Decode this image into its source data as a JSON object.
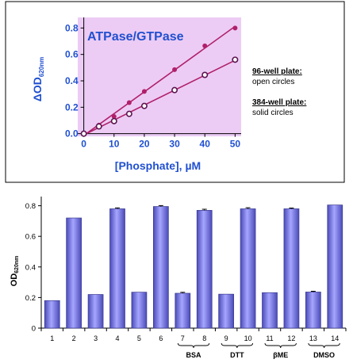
{
  "chart_data": [
    {
      "type": "line",
      "title": "ATPase/GTPase",
      "xlabel": "[Phosphate], µM",
      "ylabel_main": "ΔOD",
      "ylabel_sub": "620nm",
      "xlim": [
        -2,
        52
      ],
      "ylim": [
        -0.02,
        0.88
      ],
      "xticks": [
        0,
        10,
        20,
        30,
        40,
        50
      ],
      "xtick_labels": [
        "0",
        "10",
        "20",
        "30",
        "40",
        "50"
      ],
      "yticks": [
        0.0,
        0.2,
        0.4,
        0.6,
        0.8
      ],
      "ytick_labels": [
        "0.0",
        "0.2",
        "0.4",
        "0.6",
        "0.8"
      ],
      "plot_bg": "#ECCCF5",
      "line_color": "#B0206A",
      "open_color": "#5A1450",
      "grid": false,
      "series": [
        {
          "marker": "solid",
          "x": [
            0,
            5,
            10,
            15,
            20,
            30,
            40,
            50
          ],
          "values": [
            0.0,
            0.065,
            0.13,
            0.235,
            0.32,
            0.485,
            0.665,
            0.8
          ]
        },
        {
          "marker": "open",
          "x": [
            0,
            5,
            10,
            15,
            20,
            30,
            40,
            50
          ],
          "values": [
            0.0,
            0.055,
            0.095,
            0.15,
            0.21,
            0.33,
            0.445,
            0.56
          ]
        }
      ],
      "legend": [
        {
          "title": "96-well plate:",
          "desc": "open circles"
        },
        {
          "title": "384-well plate:",
          "desc": "solid circles"
        }
      ]
    },
    {
      "type": "bar",
      "ylabel_main": "OD",
      "ylabel_sub": "620nm",
      "ylim": [
        0,
        0.86
      ],
      "yticks": [
        0,
        0.2,
        0.4,
        0.6,
        0.8
      ],
      "ytick_labels": [
        "0",
        "0.2",
        "0.4",
        "0.6",
        "0.8"
      ],
      "categories": [
        "1",
        "2",
        "3",
        "4",
        "5",
        "6",
        "7",
        "8",
        "9",
        "10",
        "11",
        "12",
        "13",
        "14"
      ],
      "values": [
        0.18,
        0.72,
        0.22,
        0.78,
        0.235,
        0.795,
        0.228,
        0.77,
        0.222,
        0.78,
        0.232,
        0.78,
        0.236,
        0.805
      ],
      "errors": [
        0.0,
        0.0,
        0.0,
        0.006,
        0.0,
        0.006,
        0.006,
        0.007,
        0.0,
        0.007,
        0.0,
        0.005,
        0.005,
        0.0
      ],
      "bar_color": "#8080EE",
      "groups": [
        {
          "label": "BSA",
          "from": 7,
          "to": 8
        },
        {
          "label": "DTT",
          "from": 9,
          "to": 10
        },
        {
          "label": "βME",
          "from": 11,
          "to": 12
        },
        {
          "label": "DMSO",
          "from": 13,
          "to": 14
        }
      ],
      "grid": false
    }
  ]
}
